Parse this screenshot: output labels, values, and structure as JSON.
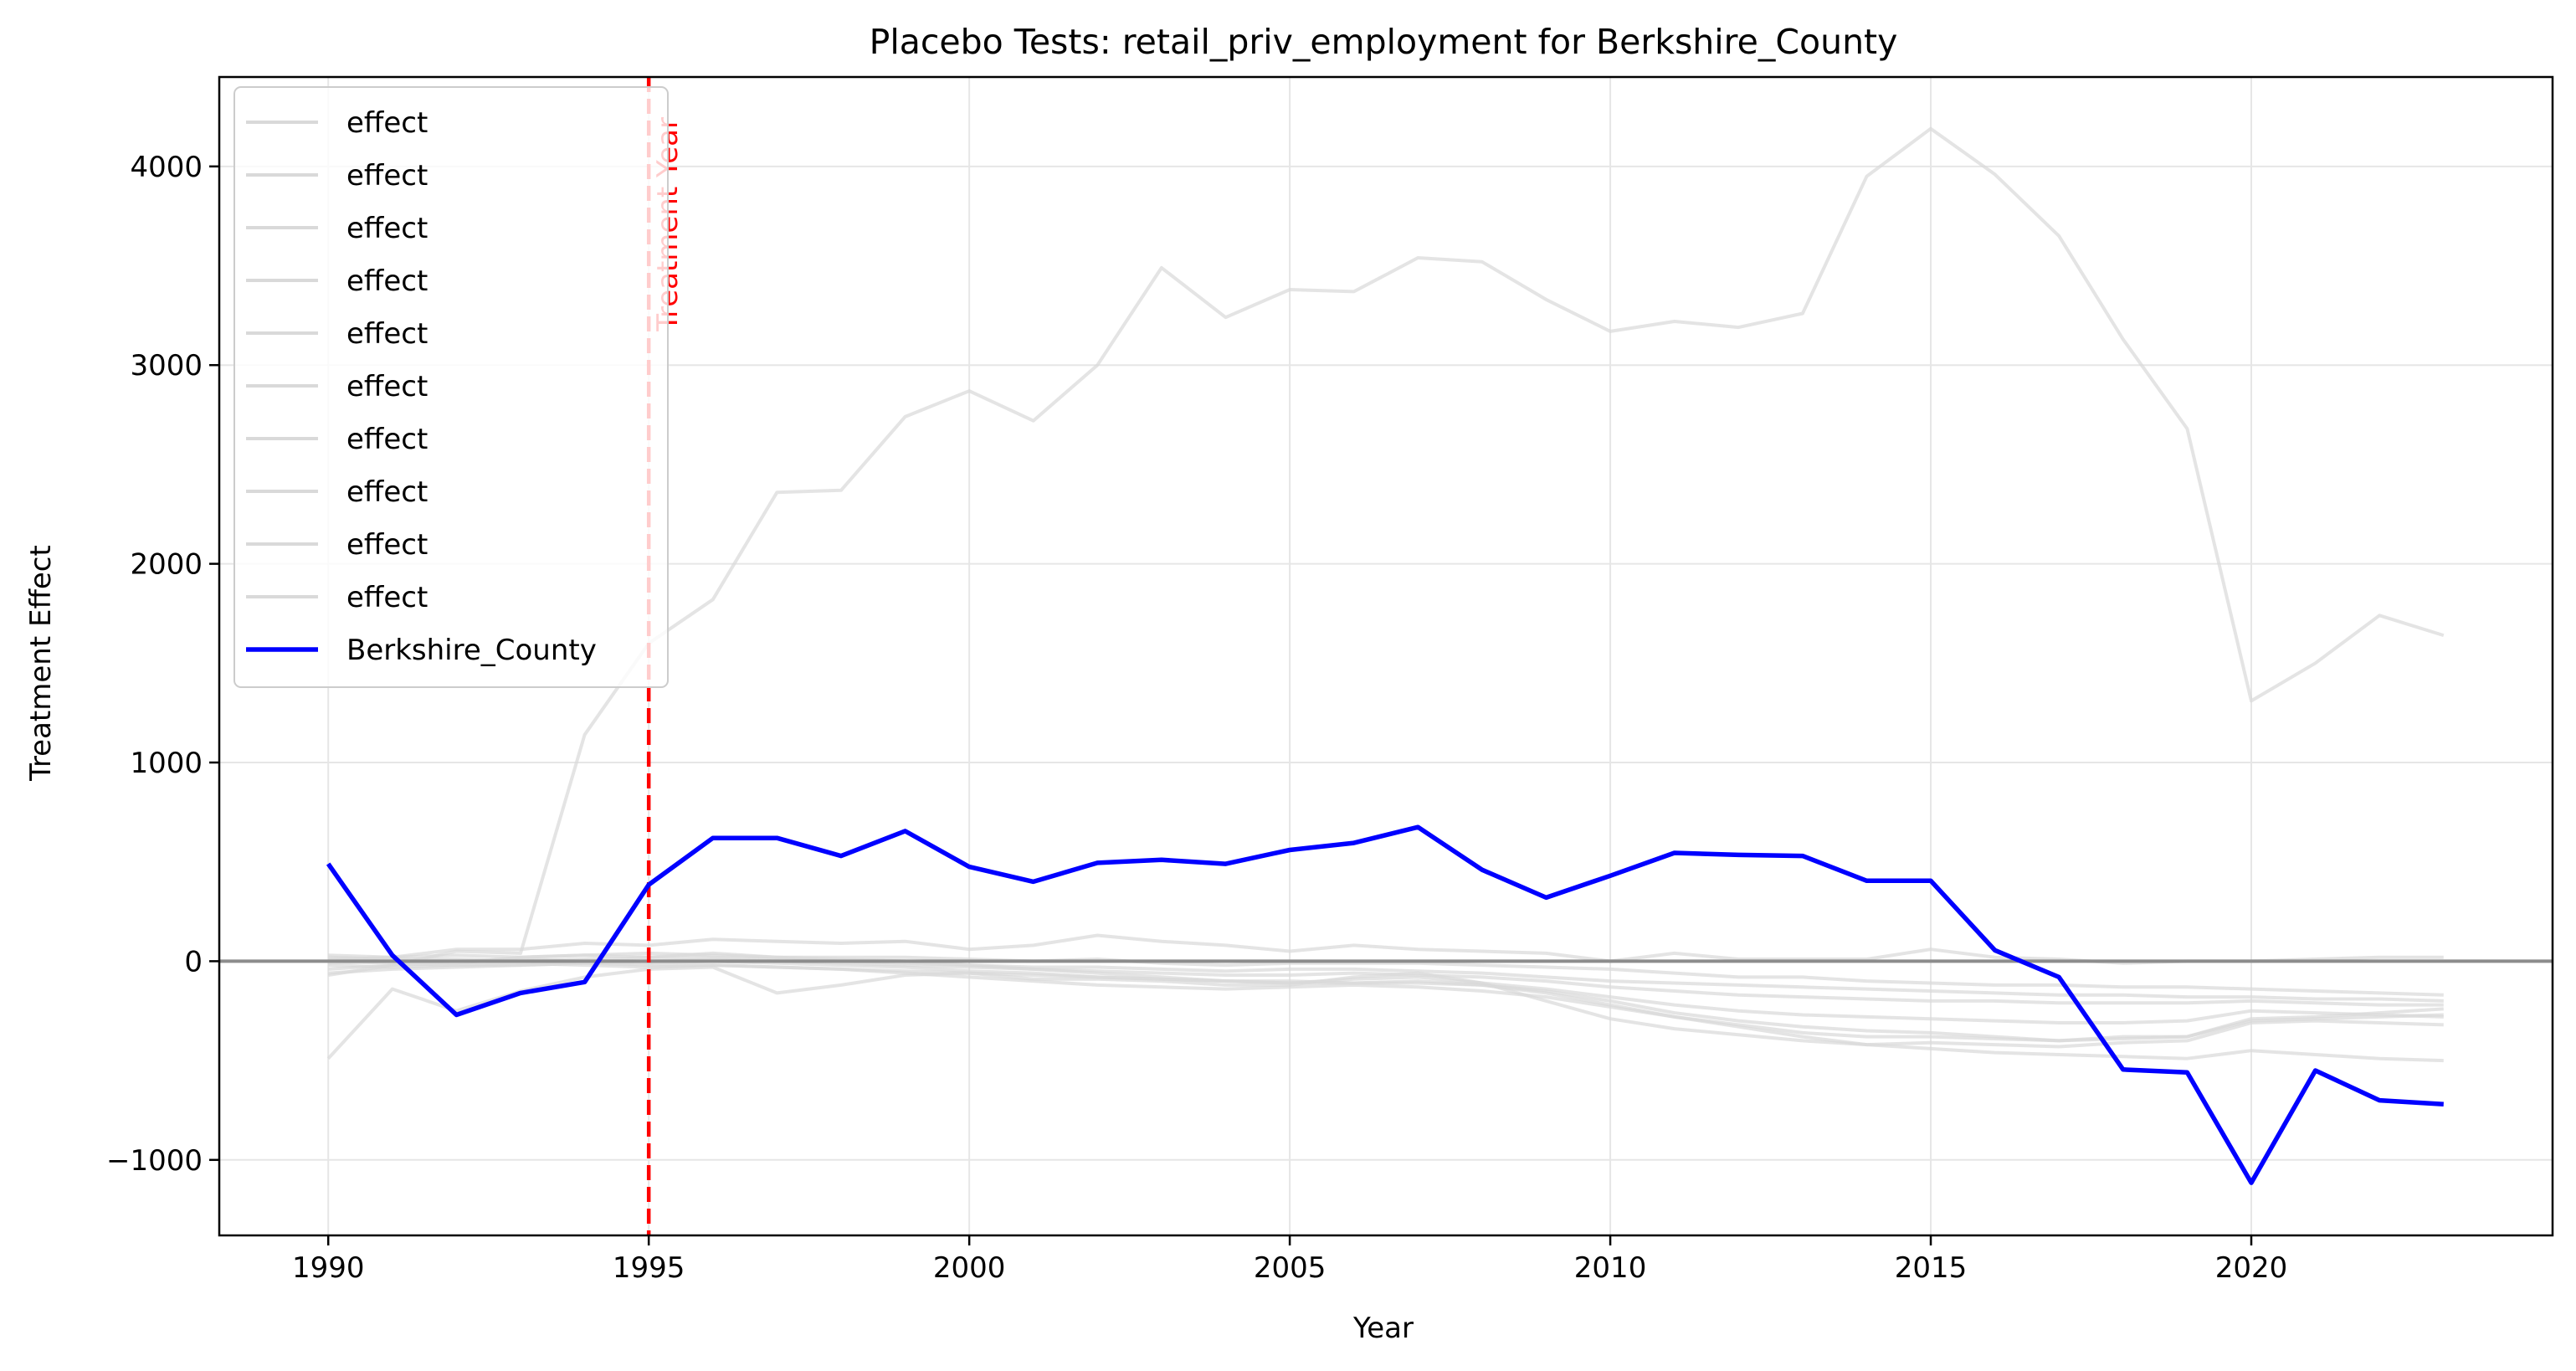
{
  "chart_data": {
    "type": "line",
    "title": "Placebo Tests: retail_priv_employment for Berkshire_County",
    "xlabel": "Year",
    "ylabel": "Treatment Effect",
    "xlim": [
      1988.3,
      2024.7
    ],
    "ylim": [
      -1380,
      4450
    ],
    "xticks": [
      1990,
      1995,
      2000,
      2005,
      2010,
      2015,
      2020
    ],
    "yticks": [
      -1000,
      0,
      1000,
      2000,
      3000,
      4000
    ],
    "ytick_labels": [
      "−1000",
      "0",
      "1000",
      "2000",
      "3000",
      "4000"
    ],
    "grid": true,
    "legend_position": "upper-left",
    "treatment_year": 1995,
    "annotation": "Treatment Year",
    "zero_line": 0,
    "colors": {
      "placebo": "#d9d9d9",
      "treated": "#0000ff",
      "treatment_line": "#ff0000",
      "zero_line": "#8c8c8c",
      "grid": "#e6e6e6"
    },
    "x": [
      1990,
      1991,
      1992,
      1993,
      1994,
      1995,
      1996,
      1997,
      1998,
      1999,
      2000,
      2001,
      2002,
      2003,
      2004,
      2005,
      2006,
      2007,
      2008,
      2009,
      2010,
      2011,
      2012,
      2013,
      2014,
      2015,
      2016,
      2017,
      2018,
      2019,
      2020,
      2021,
      2022,
      2023
    ],
    "placebo_series": [
      {
        "name": "effect",
        "values": [
          -70,
          -20,
          50,
          40,
          1140,
          1600,
          1820,
          2360,
          2370,
          2740,
          2870,
          2720,
          3000,
          3490,
          3240,
          3380,
          3370,
          3540,
          3520,
          3330,
          3170,
          3220,
          3190,
          3260,
          3950,
          4190,
          3960,
          3650,
          3130,
          2680,
          1310,
          1500,
          1740,
          1640
        ]
      },
      {
        "name": "effect",
        "values": [
          -490,
          -140,
          -250,
          -150,
          -80,
          -40,
          -30,
          -160,
          -120,
          -70,
          -60,
          -90,
          -90,
          -100,
          -120,
          -120,
          -80,
          -60,
          -110,
          -200,
          -290,
          -340,
          -370,
          -400,
          -420,
          -410,
          -420,
          -430,
          -410,
          -400,
          -310,
          -300,
          -310,
          -320
        ]
      },
      {
        "name": "effect",
        "values": [
          30,
          20,
          60,
          60,
          90,
          80,
          110,
          100,
          90,
          100,
          60,
          80,
          130,
          100,
          80,
          50,
          80,
          60,
          50,
          40,
          0,
          40,
          10,
          10,
          10,
          60,
          20,
          10,
          -10,
          0,
          0,
          10,
          20,
          20
        ]
      },
      {
        "name": "effect",
        "values": [
          -40,
          -20,
          -10,
          20,
          30,
          20,
          40,
          20,
          20,
          20,
          10,
          0,
          10,
          -10,
          -20,
          -10,
          -10,
          -10,
          -20,
          -30,
          -40,
          -60,
          -80,
          -80,
          -100,
          -110,
          -120,
          -120,
          -130,
          -130,
          -140,
          -150,
          -160,
          -170
        ]
      },
      {
        "name": "effect",
        "values": [
          0,
          -10,
          -20,
          -20,
          -10,
          -20,
          -20,
          -30,
          -40,
          -50,
          -60,
          -70,
          -80,
          -90,
          -100,
          -100,
          -110,
          -110,
          -120,
          -160,
          -220,
          -280,
          -320,
          -360,
          -380,
          -380,
          -390,
          -400,
          -380,
          -380,
          -290,
          -280,
          -260,
          -240
        ]
      },
      {
        "name": "effect",
        "values": [
          -10,
          0,
          0,
          10,
          0,
          0,
          10,
          0,
          -10,
          -20,
          -30,
          -40,
          -50,
          -60,
          -70,
          -70,
          -60,
          -70,
          -80,
          -100,
          -130,
          -150,
          -170,
          -180,
          -190,
          -200,
          -200,
          -210,
          -210,
          -210,
          -200,
          -210,
          -220,
          -220
        ]
      },
      {
        "name": "effect",
        "values": [
          20,
          10,
          10,
          0,
          10,
          20,
          20,
          10,
          0,
          -10,
          -20,
          -30,
          -30,
          -40,
          -50,
          -40,
          -40,
          -50,
          -60,
          -80,
          -100,
          -110,
          -120,
          -130,
          -140,
          -150,
          -160,
          -170,
          -170,
          -180,
          -180,
          -190,
          -190,
          -200
        ]
      },
      {
        "name": "effect",
        "values": [
          -60,
          -40,
          -30,
          -20,
          -10,
          -10,
          0,
          -10,
          -20,
          -30,
          -50,
          -60,
          -80,
          -90,
          -100,
          -110,
          -110,
          -100,
          -120,
          -150,
          -200,
          -260,
          -300,
          -330,
          -350,
          -360,
          -380,
          -400,
          -390,
          -380,
          -300,
          -290,
          -280,
          -270
        ]
      },
      {
        "name": "effect",
        "values": [
          10,
          20,
          30,
          20,
          30,
          40,
          30,
          20,
          10,
          0,
          -20,
          -40,
          -60,
          -80,
          -100,
          -110,
          -90,
          -80,
          -110,
          -140,
          -180,
          -220,
          -250,
          -270,
          -280,
          -290,
          -300,
          -310,
          -310,
          -300,
          -250,
          -260,
          -270,
          -280
        ]
      },
      {
        "name": "effect",
        "values": [
          -20,
          -30,
          -20,
          -10,
          -20,
          -30,
          -20,
          -30,
          -40,
          -60,
          -80,
          -100,
          -120,
          -130,
          -140,
          -130,
          -120,
          -130,
          -150,
          -180,
          -230,
          -280,
          -330,
          -380,
          -420,
          -440,
          -460,
          -470,
          -480,
          -490,
          -450,
          -470,
          -490,
          -500
        ]
      }
    ],
    "treated_series": {
      "name": "Berkshire_County",
      "values": [
        490,
        30,
        -270,
        -160,
        -105,
        385,
        620,
        620,
        530,
        655,
        475,
        400,
        495,
        510,
        490,
        560,
        595,
        675,
        460,
        320,
        430,
        545,
        535,
        530,
        405,
        405,
        55,
        -80,
        -545,
        -560,
        -1115,
        -550,
        -700,
        -720
      ]
    },
    "legend": [
      "effect",
      "effect",
      "effect",
      "effect",
      "effect",
      "effect",
      "effect",
      "effect",
      "effect",
      "effect",
      "Berkshire_County"
    ]
  }
}
